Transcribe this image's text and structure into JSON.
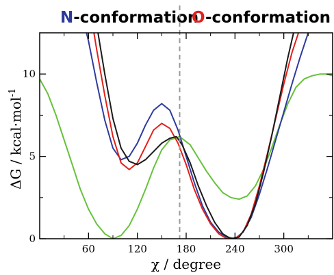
{
  "chart_data": {
    "type": "line",
    "xlabel": "χ / degree",
    "ylabel": "ΔG / kcal·mol",
    "ylabel_superscript": "-1",
    "xlim": [
      0,
      360
    ],
    "ylim": [
      0,
      12.5
    ],
    "xticks": [
      60,
      120,
      180,
      240,
      300
    ],
    "yticks": [
      0,
      5,
      10
    ],
    "divider_x": 172,
    "annotations": [
      {
        "letter": "N",
        "rest": "-conformation",
        "letter_color": "#2b3a9b"
      },
      {
        "letter": "O",
        "rest": "-conformation",
        "letter_color": "#e0211e"
      }
    ],
    "series": [
      {
        "color": "#66c23a",
        "points": [
          [
            0,
            9.7
          ],
          [
            10,
            8.8
          ],
          [
            20,
            7.5
          ],
          [
            30,
            6.0
          ],
          [
            40,
            4.5
          ],
          [
            50,
            3.0
          ],
          [
            60,
            1.8
          ],
          [
            70,
            0.9
          ],
          [
            80,
            0.3
          ],
          [
            90,
            0.0
          ],
          [
            100,
            0.2
          ],
          [
            110,
            0.8
          ],
          [
            120,
            1.8
          ],
          [
            130,
            3.0
          ],
          [
            140,
            4.3
          ],
          [
            150,
            5.4
          ],
          [
            160,
            6.0
          ],
          [
            172,
            6.2
          ],
          [
            185,
            5.7
          ],
          [
            195,
            4.9
          ],
          [
            205,
            4.1
          ],
          [
            215,
            3.4
          ],
          [
            225,
            2.8
          ],
          [
            235,
            2.5
          ],
          [
            245,
            2.4
          ],
          [
            255,
            2.6
          ],
          [
            265,
            3.2
          ],
          [
            275,
            4.2
          ],
          [
            285,
            5.5
          ],
          [
            295,
            6.9
          ],
          [
            305,
            8.2
          ],
          [
            315,
            9.2
          ],
          [
            325,
            9.7
          ],
          [
            335,
            9.9
          ],
          [
            345,
            10.0
          ],
          [
            352,
            10.0
          ],
          [
            360,
            9.9
          ]
        ]
      },
      {
        "color": "#2e3b9e",
        "points": [
          [
            55,
            13.0
          ],
          [
            60,
            12.0
          ],
          [
            70,
            9.5
          ],
          [
            80,
            7.2
          ],
          [
            90,
            5.5
          ],
          [
            100,
            4.8
          ],
          [
            110,
            5.0
          ],
          [
            120,
            5.8
          ],
          [
            130,
            6.9
          ],
          [
            140,
            7.8
          ],
          [
            150,
            8.2
          ],
          [
            160,
            7.8
          ],
          [
            170,
            6.6
          ],
          [
            180,
            5.0
          ],
          [
            190,
            3.4
          ],
          [
            200,
            2.0
          ],
          [
            210,
            1.0
          ],
          [
            220,
            0.4
          ],
          [
            230,
            0.1
          ],
          [
            240,
            0.0
          ],
          [
            250,
            0.4
          ],
          [
            260,
            1.3
          ],
          [
            270,
            2.7
          ],
          [
            280,
            4.3
          ],
          [
            290,
            6.0
          ],
          [
            300,
            7.7
          ],
          [
            310,
            9.4
          ],
          [
            320,
            11.0
          ],
          [
            330,
            12.5
          ],
          [
            335,
            13.0
          ]
        ]
      },
      {
        "color": "#e3201b",
        "points": [
          [
            65,
            13.0
          ],
          [
            70,
            11.5
          ],
          [
            80,
            8.7
          ],
          [
            90,
            6.2
          ],
          [
            100,
            4.6
          ],
          [
            110,
            4.2
          ],
          [
            120,
            4.6
          ],
          [
            130,
            5.6
          ],
          [
            140,
            6.6
          ],
          [
            150,
            7.0
          ],
          [
            160,
            6.7
          ],
          [
            170,
            5.8
          ],
          [
            180,
            4.5
          ],
          [
            190,
            3.0
          ],
          [
            200,
            1.8
          ],
          [
            210,
            0.9
          ],
          [
            220,
            0.3
          ],
          [
            230,
            0.0
          ],
          [
            240,
            0.0
          ],
          [
            250,
            0.4
          ],
          [
            260,
            1.5
          ],
          [
            270,
            3.2
          ],
          [
            280,
            5.2
          ],
          [
            290,
            7.3
          ],
          [
            300,
            9.4
          ],
          [
            310,
            11.3
          ],
          [
            318,
            12.5
          ],
          [
            322,
            13.0
          ]
        ]
      },
      {
        "color": "#1a1a1a",
        "points": [
          [
            70,
            13.0
          ],
          [
            80,
            10.0
          ],
          [
            90,
            7.3
          ],
          [
            100,
            5.5
          ],
          [
            110,
            4.7
          ],
          [
            120,
            4.5
          ],
          [
            130,
            4.8
          ],
          [
            140,
            5.3
          ],
          [
            150,
            5.8
          ],
          [
            160,
            6.1
          ],
          [
            168,
            6.2
          ],
          [
            175,
            5.7
          ],
          [
            185,
            4.6
          ],
          [
            195,
            3.2
          ],
          [
            205,
            2.0
          ],
          [
            215,
            1.0
          ],
          [
            225,
            0.3
          ],
          [
            235,
            0.0
          ],
          [
            245,
            0.1
          ],
          [
            255,
            0.8
          ],
          [
            265,
            2.1
          ],
          [
            275,
            4.0
          ],
          [
            285,
            6.2
          ],
          [
            295,
            8.6
          ],
          [
            305,
            11.0
          ],
          [
            312,
            12.5
          ],
          [
            315,
            13.0
          ]
        ]
      }
    ]
  }
}
